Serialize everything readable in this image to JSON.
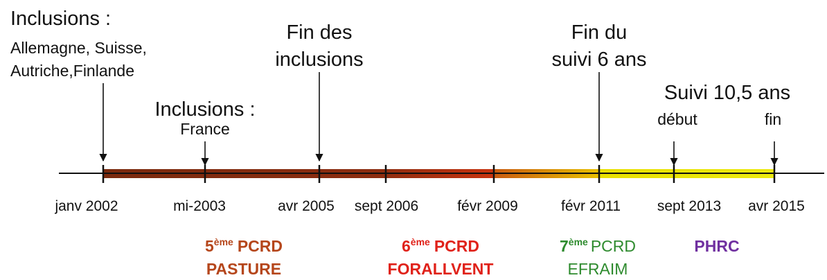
{
  "annotations": [
    {
      "lines": [
        "Inclusions :",
        "Allemagne, Suisse,",
        "Autriche,Finlande"
      ]
    },
    {
      "lines": [
        "Inclusions :",
        "France"
      ]
    },
    {
      "lines": [
        "Fin des",
        "inclusions"
      ]
    },
    {
      "lines": [
        "Fin du",
        "suivi 6 ans"
      ]
    },
    {
      "lines": [
        "Suivi 10,5 ans",
        "début",
        "fin"
      ]
    }
  ],
  "dates": [
    "janv 2002",
    "mi-2003",
    "avr 2005",
    "sept 2006",
    "févr 2009",
    "févr 2011",
    "sept 2013",
    "avr 2015"
  ],
  "programs": [
    {
      "num": "5",
      "sup": "ème",
      "name": "PCRD",
      "project": "PASTURE"
    },
    {
      "num": "6",
      "sup": "ème",
      "name": "PCRD",
      "project": "FORALLVENT"
    },
    {
      "num": "7",
      "sup": "ème",
      "name": "PCRD",
      "project": "EFRAIM"
    },
    {
      "name": "PHRC"
    }
  ]
}
